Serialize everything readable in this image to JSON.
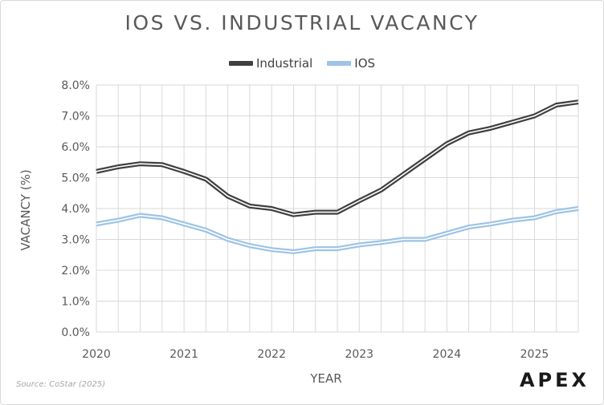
{
  "chart_data": {
    "type": "line",
    "title": "IOS VS. INDUSTRIAL VACANCY",
    "xlabel": "YEAR",
    "ylabel": "VACANCY (%)",
    "x": [
      2020.0,
      2020.25,
      2020.5,
      2020.75,
      2021.0,
      2021.25,
      2021.5,
      2021.75,
      2022.0,
      2022.25,
      2022.5,
      2022.75,
      2023.0,
      2023.25,
      2023.5,
      2023.75,
      2024.0,
      2024.25,
      2024.5,
      2024.75,
      2025.0,
      2025.25,
      2025.5
    ],
    "xlim": [
      2020,
      2025.5
    ],
    "ylim": [
      0,
      8
    ],
    "x_ticks": [
      "2020",
      "2021",
      "2022",
      "2023",
      "2024",
      "2025"
    ],
    "y_ticks": [
      "0.0%",
      "1.0%",
      "2.0%",
      "3.0%",
      "4.0%",
      "5.0%",
      "6.0%",
      "7.0%",
      "8.0%"
    ],
    "grid": "horizontal",
    "legend_position": "top-center",
    "series": [
      {
        "name": "Industrial",
        "color": "#3f3f3f",
        "values": [
          5.2,
          5.35,
          5.45,
          5.42,
          5.2,
          4.95,
          4.4,
          4.08,
          4.0,
          3.8,
          3.88,
          3.88,
          4.25,
          4.6,
          5.1,
          5.6,
          6.1,
          6.45,
          6.6,
          6.8,
          7.0,
          7.35,
          7.45
        ]
      },
      {
        "name": "IOS",
        "color": "#9dc3e6",
        "values": [
          3.5,
          3.62,
          3.78,
          3.7,
          3.5,
          3.3,
          3.0,
          2.8,
          2.67,
          2.6,
          2.7,
          2.7,
          2.82,
          2.9,
          3.0,
          3.0,
          3.2,
          3.4,
          3.5,
          3.62,
          3.7,
          3.9,
          4.0
        ]
      }
    ]
  },
  "footer": {
    "source": "Source: CoStar (2025)",
    "brand": "APEX"
  }
}
